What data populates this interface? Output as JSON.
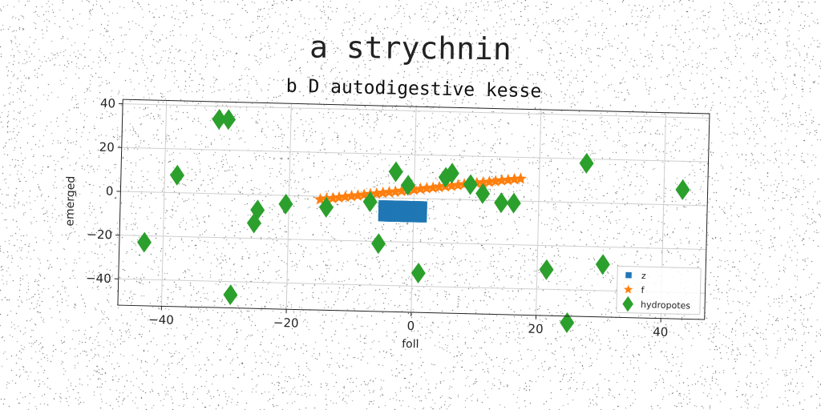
{
  "suptitle": "a strychnin",
  "chart_data": {
    "type": "scatter",
    "title": "b D autodigestive kesse",
    "xlabel": "foll",
    "ylabel": "emerged",
    "xlim": [
      -47,
      47
    ],
    "ylim": [
      -52,
      42
    ],
    "xticks": [
      -40,
      -20,
      0,
      20,
      40
    ],
    "yticks": [
      40,
      20,
      0,
      -20,
      -40
    ],
    "xtick_labels": [
      "−40",
      "−20",
      "0",
      "20",
      "40"
    ],
    "ytick_labels": [
      "40",
      "20",
      "0",
      "−20",
      "−40"
    ],
    "grid": true,
    "legend_position": "bottom-right",
    "series": [
      {
        "name": "z",
        "marker": "square",
        "color": "#1f77b4",
        "x": [
          -5,
          -4.5,
          -4,
          -3.5,
          -3,
          -2.5,
          -2,
          -1.5,
          -1,
          -0.5,
          0,
          0.5,
          1,
          1.5,
          -5,
          -4.5,
          -4,
          -3.5,
          -3,
          -2.5,
          -2,
          -1.5,
          -1,
          -0.5,
          0,
          0.5,
          1,
          1.5,
          -5,
          -4.5,
          -4,
          -3.5,
          -3,
          -2.5,
          -2,
          -1.5,
          -1,
          -0.5,
          0,
          0.5,
          1,
          1.5,
          -5,
          -4.5,
          -4,
          -3.5,
          -3,
          -2.5,
          -2,
          -1.5,
          -1,
          -0.5,
          0,
          0.5,
          1,
          1.5
        ],
        "y": [
          -3,
          -3,
          -3,
          -3,
          -3,
          -3,
          -3,
          -3,
          -3,
          -3,
          -3,
          -3,
          -3,
          -3,
          -5,
          -5,
          -5,
          -5,
          -5,
          -5,
          -5,
          -5,
          -5,
          -5,
          -5,
          -5,
          -5,
          -5,
          -7,
          -7,
          -7,
          -7,
          -7,
          -7,
          -7,
          -7,
          -7,
          -7,
          -7,
          -7,
          -7,
          -7,
          -9,
          -9,
          -9,
          -9,
          -9,
          -9,
          -9,
          -9,
          -9,
          -9,
          -9,
          -9,
          -9,
          -9
        ]
      },
      {
        "name": "f",
        "marker": "star",
        "color": "#ff7f0e",
        "x": [
          -15,
          -14,
          -13,
          -12,
          -11,
          -10,
          -9,
          -8,
          -7,
          -6,
          -5,
          -4,
          -3,
          -2,
          -1,
          0,
          1,
          2,
          3,
          4,
          5,
          6,
          7,
          8,
          9,
          10,
          11,
          12,
          13,
          14,
          15,
          16,
          17
        ],
        "y": [
          -1.5,
          -1.1,
          -0.8,
          -0.4,
          0,
          0.4,
          0.7,
          1.1,
          1.5,
          1.8,
          2.2,
          2.6,
          2.9,
          3.3,
          3.7,
          4,
          4.4,
          4.8,
          5.1,
          5.5,
          5.9,
          6.2,
          6.6,
          7,
          7.3,
          7.7,
          8.1,
          8.4,
          8.8,
          9.2,
          9.5,
          9.9,
          10.2
        ]
      },
      {
        "name": "hydropotes",
        "marker": "diamond",
        "color": "#2ca02c",
        "x": [
          -31.5,
          -30,
          -38,
          -43,
          -20.5,
          -25,
          -25.5,
          -29,
          -14,
          -7,
          -5.5,
          -3,
          -1,
          1,
          5,
          6,
          9,
          11,
          14,
          16,
          21.5,
          25,
          27.5,
          30.5,
          43
        ],
        "y": [
          34,
          34,
          8,
          -23,
          -4,
          -7,
          -13,
          -46,
          -5,
          -2,
          -21,
          12,
          6,
          -34,
          10,
          12,
          7,
          3,
          -1,
          -1,
          -31,
          -55,
          18,
          -28,
          7
        ]
      }
    ]
  }
}
